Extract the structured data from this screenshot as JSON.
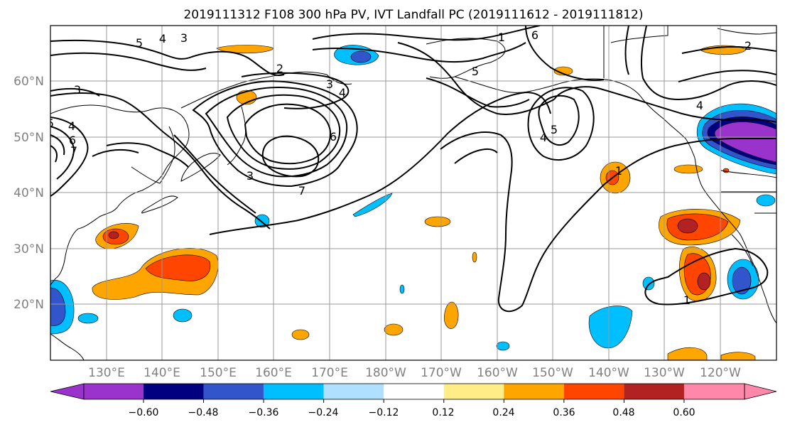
{
  "title": "2019111312 F108 300 hPa PV, IVT Landfall PC (2019111612 - 2019111812)",
  "map": {
    "lat_labels": [
      "60°N",
      "50°N",
      "40°N",
      "30°N",
      "20°N"
    ],
    "lon_labels": [
      "130°E",
      "140°E",
      "150°E",
      "160°E",
      "170°E",
      "180°W",
      "170°W",
      "160°W",
      "150°W",
      "140°W",
      "130°W",
      "120°W"
    ],
    "lon_range": [
      120,
      250
    ],
    "lat_range": [
      10,
      70
    ],
    "gridlines": true
  },
  "pv_contour_labels": [
    "5",
    "4",
    "3",
    "3",
    "2",
    "3",
    "4",
    "6",
    "7",
    "6",
    "5",
    "4",
    "5",
    "1",
    "1",
    "2",
    "4",
    "6",
    "7",
    "3",
    "5",
    "4",
    "1"
  ],
  "colorbar": {
    "ticks": [
      "−0.60",
      "−0.48",
      "−0.36",
      "−0.24",
      "−0.12",
      "0.12",
      "0.24",
      "0.36",
      "0.48",
      "0.60"
    ],
    "colors": [
      "#9933cc",
      "#000080",
      "#3355cc",
      "#00bfff",
      "#b0e0ff",
      "#ffffff",
      "#ffee88",
      "#ffa500",
      "#ff4500",
      "#b22222",
      "#ff88aa"
    ],
    "extend": "both"
  }
}
